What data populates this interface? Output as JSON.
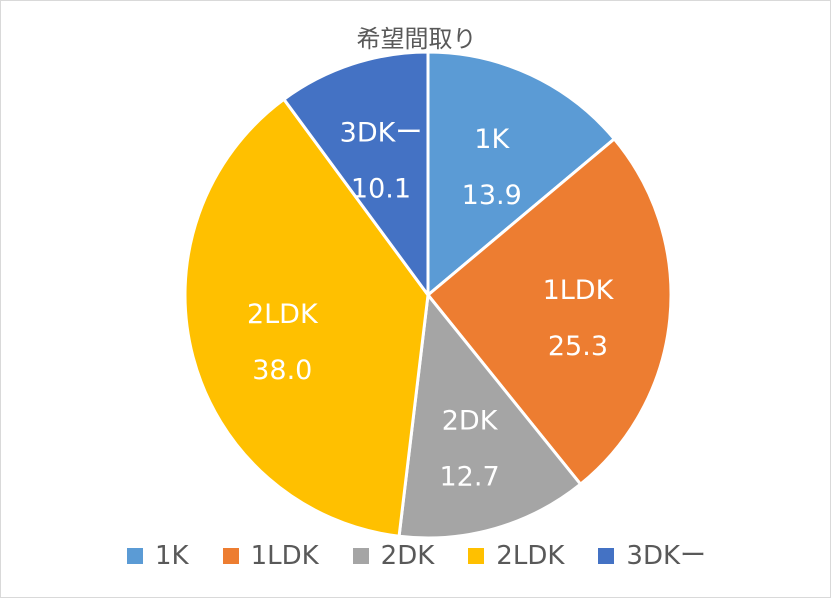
{
  "chart_data": {
    "type": "pie",
    "title": "希望間取り",
    "categories": [
      "1K",
      "1LDK",
      "2DK",
      "2LDK",
      "3DKー"
    ],
    "values": [
      13.9,
      25.3,
      12.7,
      38.0,
      10.1
    ],
    "value_labels": [
      "13.9",
      "25.3",
      "12.7",
      "38.0",
      "10.1"
    ],
    "colors": [
      "#5B9BD5",
      "#ED7D31",
      "#A5A5A5",
      "#FFC000",
      "#4472C4"
    ],
    "start_angle_deg": 0,
    "direction": "clockwise",
    "legend_position": "bottom"
  }
}
